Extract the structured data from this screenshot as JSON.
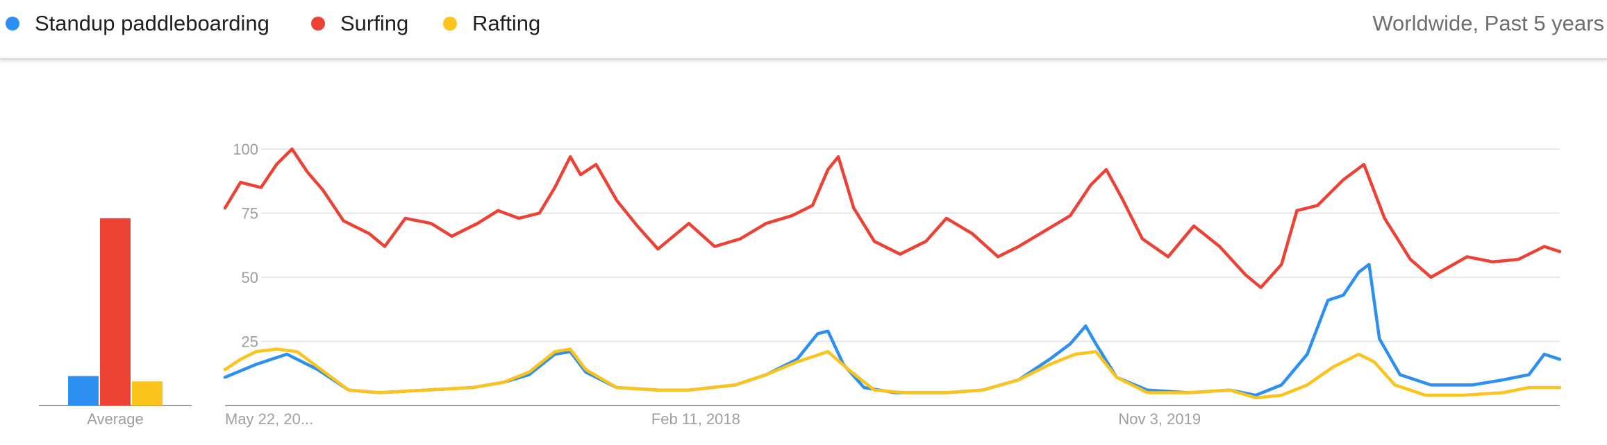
{
  "header": {
    "scope_label": "Worldwide, Past 5 years"
  },
  "colors": {
    "standup": "#2d8ff0",
    "surfing": "#ec4236",
    "rafting": "#fbc31c",
    "gridline": "#e0e0e0",
    "axis_text": "#9e9e9e"
  },
  "chart_data": [
    {
      "type": "bar",
      "xlabel": "Average",
      "categories": [
        "Standup paddleboarding",
        "Surfing",
        "Rafting"
      ],
      "values": [
        11,
        70,
        9
      ],
      "ylim": [
        0,
        100
      ]
    },
    {
      "type": "line",
      "legend": "top",
      "grid": true,
      "ylim": [
        0,
        100
      ],
      "yticks": [
        25,
        50,
        75,
        100
      ],
      "x_range": [
        "2016-05-22",
        "2021-05-09"
      ],
      "xticks": [
        {
          "date": "2016-05-22",
          "label": "May 22, 20..."
        },
        {
          "date": "2018-02-11",
          "label": "Feb 11, 2018"
        },
        {
          "date": "2019-11-03",
          "label": "Nov 3, 2019"
        }
      ],
      "series": [
        {
          "name": "Standup paddleboarding",
          "points": [
            [
              "2016-05-22",
              11
            ],
            [
              "2016-07-03",
              16
            ],
            [
              "2016-08-14",
              20
            ],
            [
              "2016-09-25",
              14
            ],
            [
              "2016-11-06",
              6
            ],
            [
              "2016-12-18",
              5
            ],
            [
              "2017-02-19",
              6
            ],
            [
              "2017-04-23",
              7
            ],
            [
              "2017-06-04",
              9
            ],
            [
              "2017-07-09",
              12
            ],
            [
              "2017-08-13",
              20
            ],
            [
              "2017-09-03",
              21
            ],
            [
              "2017-09-24",
              13
            ],
            [
              "2017-11-05",
              7
            ],
            [
              "2017-12-31",
              6
            ],
            [
              "2018-02-11",
              6
            ],
            [
              "2018-04-15",
              8
            ],
            [
              "2018-05-27",
              12
            ],
            [
              "2018-07-08",
              18
            ],
            [
              "2018-08-05",
              28
            ],
            [
              "2018-08-19",
              29
            ],
            [
              "2018-09-09",
              16
            ],
            [
              "2018-10-07",
              7
            ],
            [
              "2018-11-18",
              5
            ],
            [
              "2019-01-27",
              5
            ],
            [
              "2019-03-17",
              6
            ],
            [
              "2019-05-05",
              10
            ],
            [
              "2019-06-16",
              18
            ],
            [
              "2019-07-14",
              24
            ],
            [
              "2019-08-04",
              31
            ],
            [
              "2019-08-18",
              24
            ],
            [
              "2019-09-15",
              11
            ],
            [
              "2019-10-27",
              6
            ],
            [
              "2019-12-22",
              5
            ],
            [
              "2020-02-16",
              6
            ],
            [
              "2020-03-22",
              4
            ],
            [
              "2020-04-26",
              8
            ],
            [
              "2020-05-31",
              20
            ],
            [
              "2020-06-28",
              41
            ],
            [
              "2020-07-19",
              43
            ],
            [
              "2020-08-09",
              52
            ],
            [
              "2020-08-23",
              55
            ],
            [
              "2020-09-06",
              26
            ],
            [
              "2020-10-04",
              12
            ],
            [
              "2020-11-15",
              8
            ],
            [
              "2021-01-10",
              8
            ],
            [
              "2021-02-21",
              10
            ],
            [
              "2021-03-28",
              12
            ],
            [
              "2021-04-18",
              20
            ],
            [
              "2021-05-09",
              18
            ]
          ]
        },
        {
          "name": "Surfing",
          "points": [
            [
              "2016-05-22",
              77
            ],
            [
              "2016-06-12",
              87
            ],
            [
              "2016-07-10",
              85
            ],
            [
              "2016-07-31",
              94
            ],
            [
              "2016-08-21",
              100
            ],
            [
              "2016-09-11",
              91
            ],
            [
              "2016-10-02",
              84
            ],
            [
              "2016-10-30",
              72
            ],
            [
              "2016-12-04",
              67
            ],
            [
              "2016-12-25",
              62
            ],
            [
              "2017-01-22",
              73
            ],
            [
              "2017-02-26",
              71
            ],
            [
              "2017-03-26",
              66
            ],
            [
              "2017-04-30",
              71
            ],
            [
              "2017-05-28",
              76
            ],
            [
              "2017-06-25",
              73
            ],
            [
              "2017-07-23",
              75
            ],
            [
              "2017-08-13",
              85
            ],
            [
              "2017-09-03",
              97
            ],
            [
              "2017-09-17",
              90
            ],
            [
              "2017-10-08",
              94
            ],
            [
              "2017-11-05",
              80
            ],
            [
              "2017-12-03",
              70
            ],
            [
              "2017-12-31",
              61
            ],
            [
              "2018-02-11",
              71
            ],
            [
              "2018-03-18",
              62
            ],
            [
              "2018-04-22",
              65
            ],
            [
              "2018-05-27",
              71
            ],
            [
              "2018-07-01",
              74
            ],
            [
              "2018-07-29",
              78
            ],
            [
              "2018-08-19",
              92
            ],
            [
              "2018-09-02",
              97
            ],
            [
              "2018-09-23",
              77
            ],
            [
              "2018-10-21",
              64
            ],
            [
              "2018-11-25",
              59
            ],
            [
              "2018-12-30",
              64
            ],
            [
              "2019-01-27",
              73
            ],
            [
              "2019-03-03",
              67
            ],
            [
              "2019-04-07",
              58
            ],
            [
              "2019-05-05",
              62
            ],
            [
              "2019-06-09",
              68
            ],
            [
              "2019-07-14",
              74
            ],
            [
              "2019-08-11",
              86
            ],
            [
              "2019-09-01",
              92
            ],
            [
              "2019-09-22",
              81
            ],
            [
              "2019-10-20",
              65
            ],
            [
              "2019-11-24",
              58
            ],
            [
              "2019-12-29",
              70
            ],
            [
              "2020-02-02",
              62
            ],
            [
              "2020-03-08",
              51
            ],
            [
              "2020-03-29",
              46
            ],
            [
              "2020-04-26",
              55
            ],
            [
              "2020-05-17",
              76
            ],
            [
              "2020-06-14",
              78
            ],
            [
              "2020-07-19",
              88
            ],
            [
              "2020-08-16",
              94
            ],
            [
              "2020-09-13",
              73
            ],
            [
              "2020-10-18",
              57
            ],
            [
              "2020-11-15",
              50
            ],
            [
              "2021-01-03",
              58
            ],
            [
              "2021-02-07",
              56
            ],
            [
              "2021-03-14",
              57
            ],
            [
              "2021-04-18",
              62
            ],
            [
              "2021-05-09",
              60
            ]
          ]
        },
        {
          "name": "Rafting",
          "points": [
            [
              "2016-05-22",
              14
            ],
            [
              "2016-06-12",
              18
            ],
            [
              "2016-07-03",
              21
            ],
            [
              "2016-07-31",
              22
            ],
            [
              "2016-08-28",
              21
            ],
            [
              "2016-09-25",
              15
            ],
            [
              "2016-11-06",
              6
            ],
            [
              "2016-12-18",
              5
            ],
            [
              "2017-02-19",
              6
            ],
            [
              "2017-04-23",
              7
            ],
            [
              "2017-06-04",
              9
            ],
            [
              "2017-07-09",
              13
            ],
            [
              "2017-08-13",
              21
            ],
            [
              "2017-09-03",
              22
            ],
            [
              "2017-09-24",
              14
            ],
            [
              "2017-11-05",
              7
            ],
            [
              "2017-12-31",
              6
            ],
            [
              "2018-02-11",
              6
            ],
            [
              "2018-04-15",
              8
            ],
            [
              "2018-05-27",
              12
            ],
            [
              "2018-07-08",
              17
            ],
            [
              "2018-08-19",
              21
            ],
            [
              "2018-09-16",
              14
            ],
            [
              "2018-10-21",
              6
            ],
            [
              "2018-12-02",
              5
            ],
            [
              "2019-01-27",
              5
            ],
            [
              "2019-03-17",
              6
            ],
            [
              "2019-05-05",
              10
            ],
            [
              "2019-06-16",
              16
            ],
            [
              "2019-07-21",
              20
            ],
            [
              "2019-08-18",
              21
            ],
            [
              "2019-09-15",
              11
            ],
            [
              "2019-10-27",
              5
            ],
            [
              "2019-12-22",
              5
            ],
            [
              "2020-02-16",
              6
            ],
            [
              "2020-03-22",
              3
            ],
            [
              "2020-04-26",
              4
            ],
            [
              "2020-05-31",
              8
            ],
            [
              "2020-07-05",
              15
            ],
            [
              "2020-08-09",
              20
            ],
            [
              "2020-08-30",
              17
            ],
            [
              "2020-09-27",
              8
            ],
            [
              "2020-11-08",
              4
            ],
            [
              "2020-12-27",
              4
            ],
            [
              "2021-02-21",
              5
            ],
            [
              "2021-03-28",
              7
            ],
            [
              "2021-05-09",
              7
            ]
          ]
        }
      ]
    }
  ]
}
